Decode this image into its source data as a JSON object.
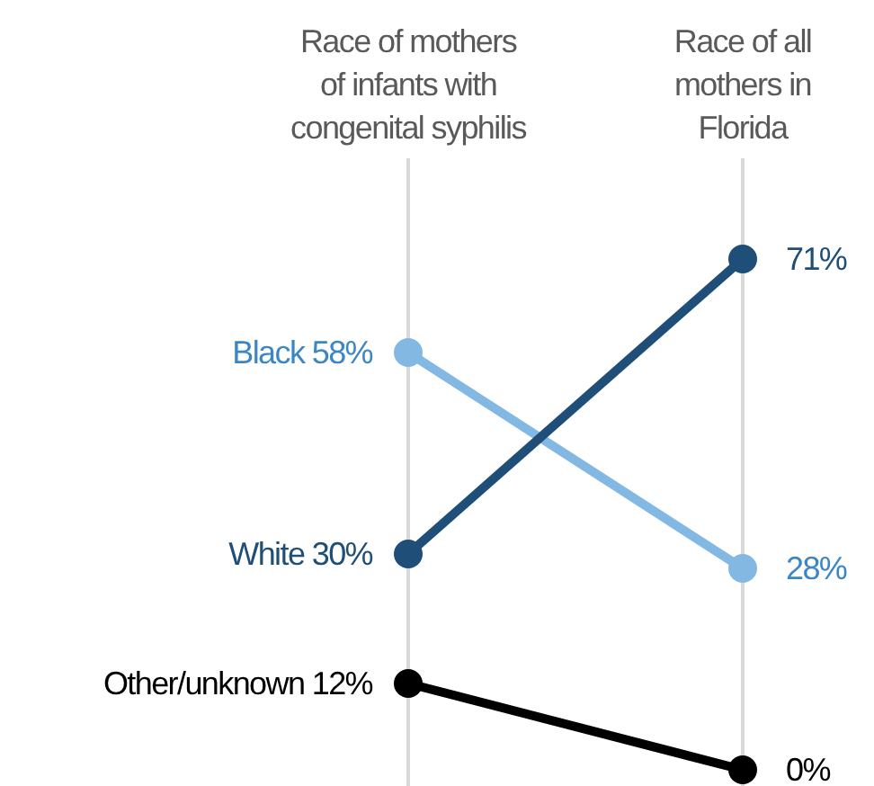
{
  "chart_data": {
    "type": "line",
    "categories": [
      "Race of mothers\nof infants with\ncongenital syphilis",
      "Race of all\nmothers in\nFlorida"
    ],
    "grid": "x",
    "marker": "circle",
    "line_style": "solid",
    "series": [
      {
        "name": "Black",
        "color": "#82b8e2",
        "values": [
          58,
          28
        ],
        "value_labels": [
          "58%",
          "28%"
        ]
      },
      {
        "name": "White",
        "color": "#1f4e79",
        "values": [
          30,
          71
        ],
        "value_labels": [
          "30%",
          "71%"
        ]
      },
      {
        "name": "Other/unknown",
        "color": "#000000",
        "values": [
          12,
          0
        ],
        "value_labels": [
          "12%",
          "0%"
        ]
      }
    ]
  }
}
